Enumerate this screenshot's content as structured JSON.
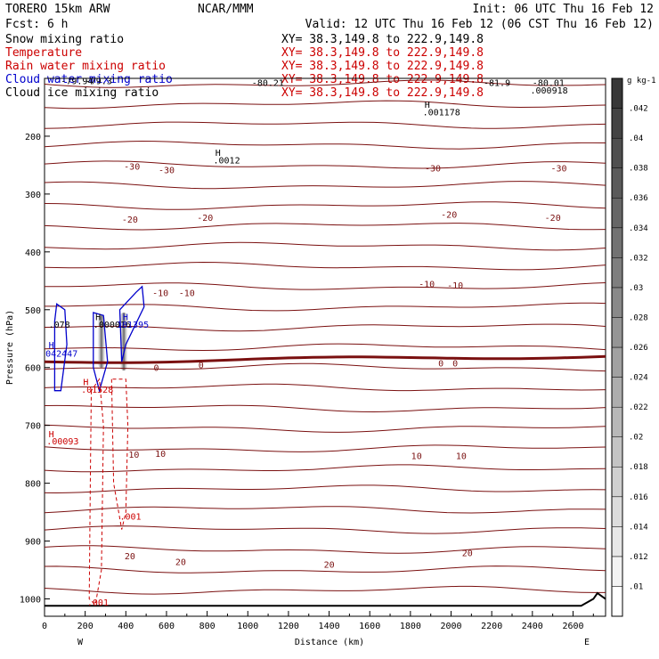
{
  "header": {
    "model": "TORERO  15km ARW",
    "org": "NCAR/MMM",
    "init": "Init: 06 UTC Thu 16 Feb 12",
    "fcst": "Fcst:    6 h",
    "valid": "Valid: 12 UTC Thu 16 Feb 12 (06 CST Thu 16 Feb 12)",
    "fields": [
      {
        "name": "Snow mixing ratio",
        "xy": "XY=  38.3,149.8 to 222.9,149.8",
        "color": "#000000"
      },
      {
        "name": "Temperature",
        "xy": "XY=  38.3,149.8 to 222.9,149.8",
        "color": "#cc0000"
      },
      {
        "name": "Rain water mixing ratio",
        "xy": "XY=  38.3,149.8 to 222.9,149.8",
        "color": "#cc0000"
      },
      {
        "name": "Cloud water mixing ratio",
        "xy": "XY=  38.3,149.8 to 222.9,149.8",
        "color": "#0000cc"
      },
      {
        "name": "Cloud ice mixing ratio",
        "xy": "XY=  38.3,149.8 to 222.9,149.8",
        "color": "#000000"
      }
    ]
  },
  "chart_data": {
    "type": "contour",
    "xlabel": "Distance (km)",
    "ylabel": "Pressure (hPa)",
    "xlim": [
      0,
      2760
    ],
    "ylim": [
      100,
      1030
    ],
    "x_ticks": [
      0,
      200,
      400,
      600,
      800,
      1000,
      1200,
      1400,
      1600,
      1800,
      2000,
      2200,
      2400,
      2600
    ],
    "y_ticks": [
      200,
      300,
      400,
      500,
      600,
      700,
      800,
      900,
      1000
    ],
    "x_endpoints": {
      "left": "W",
      "right": "E"
    },
    "colorbar": {
      "units": "g kg-1",
      "ticks": [
        ".01",
        ".012",
        ".014",
        ".016",
        ".018",
        ".02",
        ".022",
        ".024",
        ".026",
        ".028",
        ".03",
        ".032",
        ".034",
        ".036",
        ".038",
        ".04",
        ".042"
      ]
    },
    "temperature_isotherms": [
      {
        "label": "-30",
        "pressure": 255
      },
      {
        "label": "-20",
        "pressure": 335
      },
      {
        "label": "-10",
        "pressure": 480
      },
      {
        "label": "0",
        "pressure": 590
      },
      {
        "label": "10",
        "pressure": 750
      },
      {
        "label": "20",
        "pressure": 920
      }
    ],
    "contour_labels": [
      {
        "text": "-30",
        "x": 430,
        "p": 252
      },
      {
        "text": "-30",
        "x": 600,
        "p": 258
      },
      {
        "text": "-30",
        "x": 1910,
        "p": 255
      },
      {
        "text": "-30",
        "x": 2530,
        "p": 255
      },
      {
        "text": "-20",
        "x": 420,
        "p": 343
      },
      {
        "text": "-20",
        "x": 790,
        "p": 340
      },
      {
        "text": "-20",
        "x": 1990,
        "p": 335
      },
      {
        "text": "-20",
        "x": 2500,
        "p": 340
      },
      {
        "text": "-10",
        "x": 570,
        "p": 470
      },
      {
        "text": "-10",
        "x": 700,
        "p": 470
      },
      {
        "text": "-10",
        "x": 1880,
        "p": 455
      },
      {
        "text": "-10",
        "x": 2020,
        "p": 457
      },
      {
        "text": "0",
        "x": 550,
        "p": 600
      },
      {
        "text": "0",
        "x": 770,
        "p": 595
      },
      {
        "text": "0",
        "x": 1950,
        "p": 592
      },
      {
        "text": "0",
        "x": 2020,
        "p": 592
      },
      {
        "text": "10",
        "x": 440,
        "p": 750
      },
      {
        "text": "10",
        "x": 570,
        "p": 748
      },
      {
        "text": "10",
        "x": 1830,
        "p": 752
      },
      {
        "text": "10",
        "x": 2050,
        "p": 752
      },
      {
        "text": "20",
        "x": 420,
        "p": 925
      },
      {
        "text": "20",
        "x": 670,
        "p": 935
      },
      {
        "text": "20",
        "x": 1400,
        "p": 940
      },
      {
        "text": "20",
        "x": 2080,
        "p": 920
      }
    ],
    "annotations": [
      {
        "text": "-79.94",
        "x": 80,
        "p": 104,
        "color": "#000000"
      },
      {
        "text": "-79.3",
        "x": 200,
        "p": 104,
        "color": "#000000"
      },
      {
        "text": "-80.21",
        "x": 1020,
        "p": 107,
        "color": "#000000"
      },
      {
        "text": "-81.9",
        "x": 2160,
        "p": 107,
        "color": "#000000"
      },
      {
        "text": "-80.01",
        "x": 2400,
        "p": 107,
        "color": "#000000"
      },
      {
        "text": "H",
        "x": 1870,
        "p": 145,
        "color": "#000000"
      },
      {
        "text": ".001178",
        "x": 1860,
        "p": 158,
        "color": "#000000"
      },
      {
        "text": ".000918",
        "x": 2390,
        "p": 120,
        "color": "#000000"
      },
      {
        "text": "H",
        "x": 840,
        "p": 228,
        "color": "#000000"
      },
      {
        "text": ".0012",
        "x": 830,
        "p": 241,
        "color": "#000000"
      },
      {
        "text": ".078",
        "x": 20,
        "p": 525,
        "color": "#000000"
      },
      {
        "text": "H",
        "x": 20,
        "p": 560,
        "color": "#0000cc"
      },
      {
        "text": "042447",
        "x": 5,
        "p": 575,
        "color": "#0000cc"
      },
      {
        "text": "H",
        "x": 250,
        "p": 512,
        "color": "#000000"
      },
      {
        "text": ".000016",
        "x": 240,
        "p": 525,
        "color": "#000000"
      },
      {
        "text": "H",
        "x": 385,
        "p": 512,
        "color": "#0000cc"
      },
      {
        "text": "181395",
        "x": 355,
        "p": 525,
        "color": "#0000cc"
      },
      {
        "text": "H",
        "x": 190,
        "p": 624,
        "color": "#cc0000"
      },
      {
        "text": ".01528",
        "x": 180,
        "p": 637,
        "color": "#cc0000"
      },
      {
        "text": "H",
        "x": 20,
        "p": 714,
        "color": "#cc0000"
      },
      {
        "text": ".00093",
        "x": 10,
        "p": 727,
        "color": "#cc0000"
      },
      {
        "text": ".001",
        "x": 370,
        "p": 857,
        "color": "#cc0000"
      },
      {
        "text": ".001",
        "x": 210,
        "p": 1005,
        "color": "#cc0000"
      }
    ]
  }
}
